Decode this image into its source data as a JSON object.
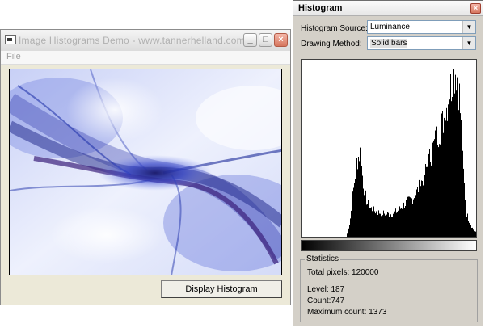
{
  "main_window": {
    "title": "Image Histograms Demo - www.tannerhelland.com",
    "menu": [
      "File"
    ],
    "display_button_label": "Display Histogram",
    "window_buttons": {
      "minimize": "_",
      "maximize": "□",
      "close": "×"
    }
  },
  "histogram_window": {
    "title": "Histogram",
    "close_glyph": "×",
    "source_label": "Histogram Source:",
    "source_value": "Luminance",
    "method_label": "Drawing Method:",
    "method_value": "Solid bars",
    "dropdown_arrow": "▼",
    "stats": {
      "legend": "Statistics",
      "total_pixels": "Total pixels: 120000",
      "level": "Level: 187",
      "count": "Count:747",
      "max_count": "Maximum count: 1373"
    }
  },
  "chart_data": {
    "type": "bar",
    "x_range": [
      0,
      255
    ],
    "y_range": [
      0,
      1373
    ],
    "values_sampled_every_5_levels": [
      0,
      0,
      0,
      0,
      0,
      0,
      0,
      0,
      0,
      0,
      0,
      0,
      0,
      0,
      110,
      360,
      610,
      690,
      420,
      280,
      235,
      215,
      200,
      195,
      190,
      185,
      185,
      195,
      210,
      235,
      265,
      285,
      305,
      335,
      390,
      450,
      520,
      610,
      700,
      780,
      860,
      920,
      1010,
      1170,
      1280,
      1373,
      1180,
      610,
      200,
      120,
      60,
      30
    ]
  }
}
